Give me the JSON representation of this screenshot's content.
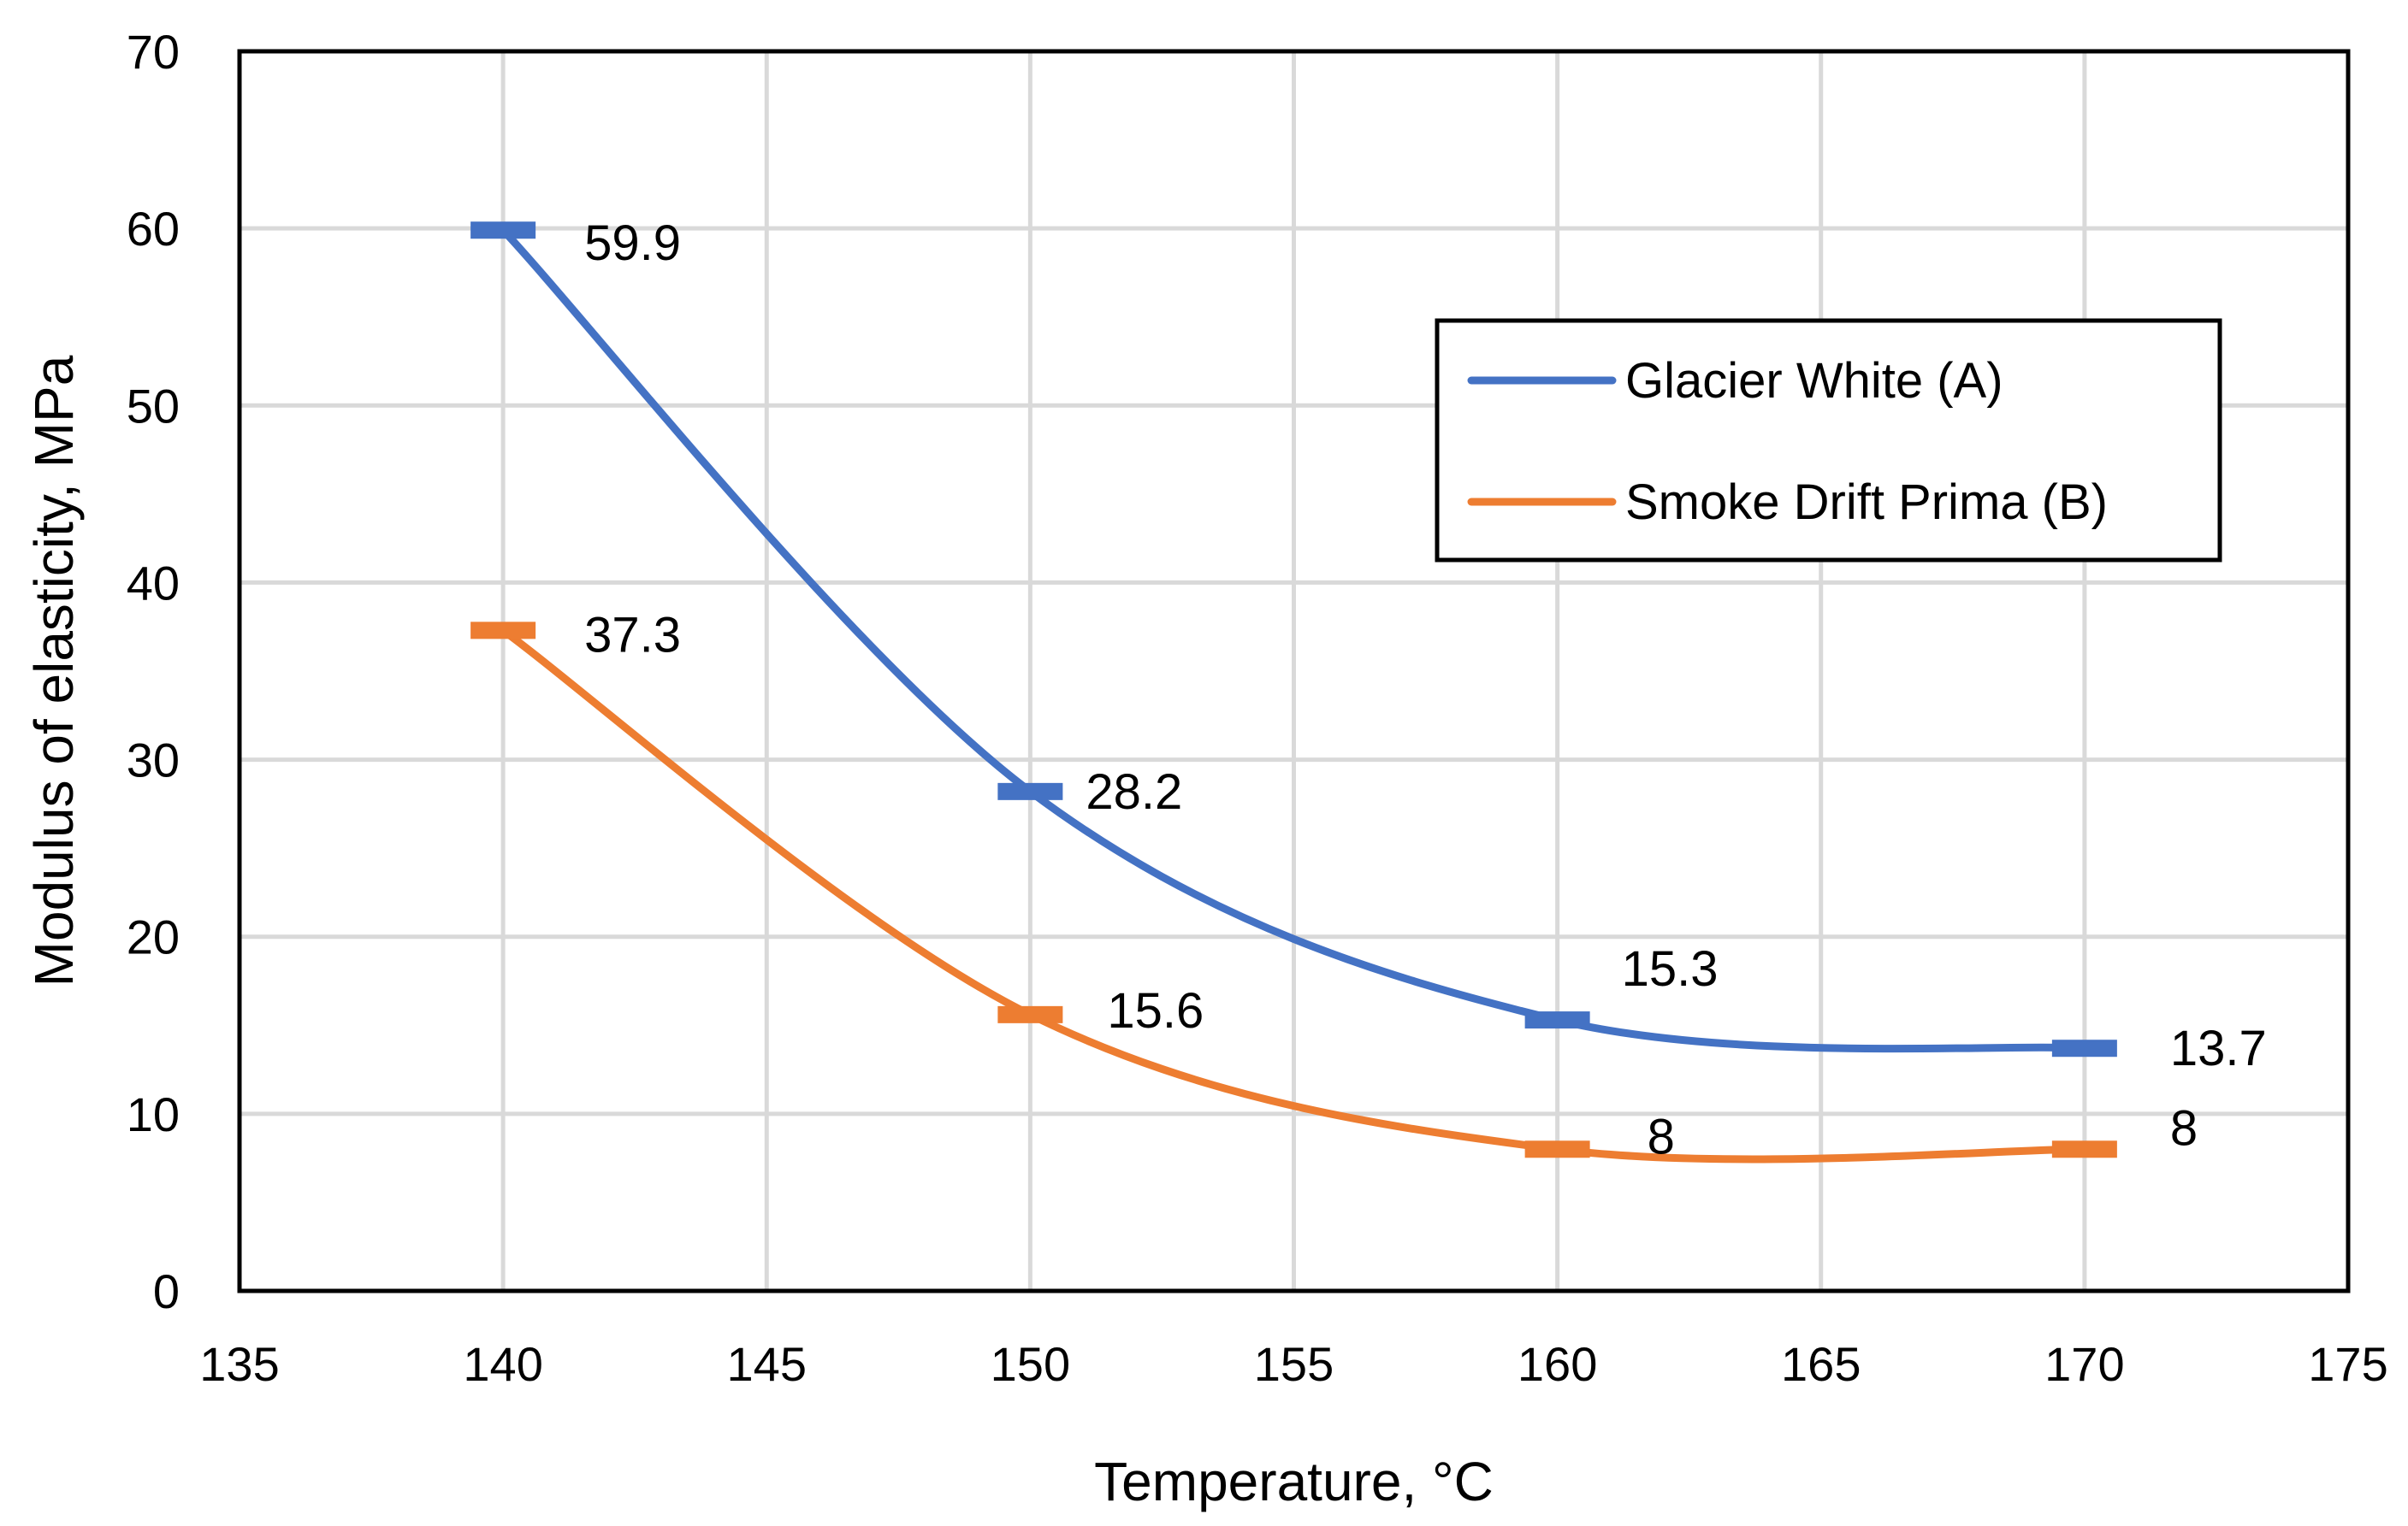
{
  "chart_data": {
    "type": "line",
    "title": "",
    "xlabel": "Temperature, °C",
    "ylabel": "Modulus of elasticity, MPa",
    "xlim": [
      135,
      175
    ],
    "ylim": [
      0,
      70
    ],
    "xticks": [
      135,
      140,
      145,
      150,
      155,
      160,
      165,
      170,
      175
    ],
    "yticks": [
      0,
      10,
      20,
      30,
      40,
      50,
      60,
      70
    ],
    "grid": true,
    "smooth": true,
    "legend_position": "top-right",
    "series": [
      {
        "name": "Glacier White (A)",
        "color": "#4472C4",
        "x": [
          140,
          150,
          160,
          170
        ],
        "y": [
          59.9,
          28.2,
          15.3,
          13.7
        ],
        "labels": [
          "59.9",
          "28.2",
          "15.3",
          "13.7"
        ]
      },
      {
        "name": "Smoke Drift Prima (B)",
        "color": "#ED7D31",
        "x": [
          140,
          150,
          160,
          170
        ],
        "y": [
          37.3,
          15.6,
          8,
          8
        ],
        "labels": [
          "37.3",
          "15.6",
          "8",
          "8"
        ]
      }
    ]
  }
}
